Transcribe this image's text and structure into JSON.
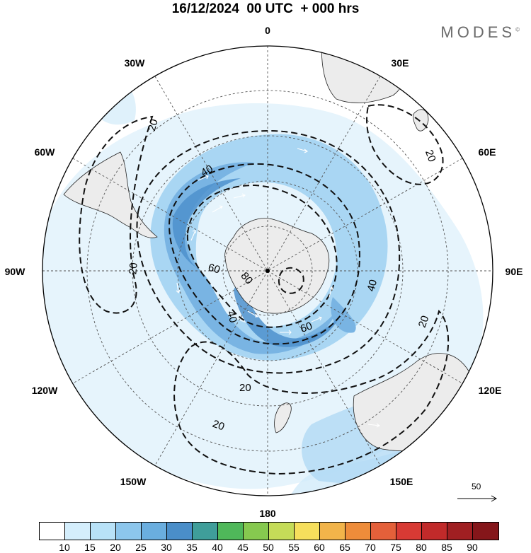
{
  "title": "16/12/2024  00 UTC  + 000 hrs",
  "brand": "MODES",
  "brand_mark": "©",
  "longitude_labels": [
    "0",
    "30E",
    "60E",
    "90E",
    "120E",
    "150E",
    "180",
    "150W",
    "120W",
    "90W",
    "60W",
    "30W"
  ],
  "contour_labels": [
    "20",
    "20",
    "20",
    "20",
    "20",
    "20",
    "40",
    "40",
    "40",
    "60",
    "60",
    "80"
  ],
  "scale_vector_label": "50",
  "colorbar": {
    "colors": [
      "#ffffff",
      "#d4eefc",
      "#b8e2f8",
      "#8cc6ec",
      "#6aaedf",
      "#4a8ec9",
      "#3f9e9a",
      "#4fb85a",
      "#86c94f",
      "#c5dc58",
      "#f6df5c",
      "#f2b44a",
      "#ee8c3a",
      "#e4603a",
      "#d83a34",
      "#c12a2a",
      "#a01f22",
      "#85161a"
    ],
    "labels": [
      "10",
      "15",
      "20",
      "25",
      "30",
      "35",
      "40",
      "45",
      "50",
      "55",
      "60",
      "65",
      "70",
      "75",
      "80",
      "85",
      "90"
    ]
  },
  "colors": {
    "land": "#ececec",
    "coast": "#222222",
    "wind_light": "#d2ebfa",
    "wind_medium": "#a9d6f3",
    "wind_strong": "#79b4e3",
    "wind_core": "#4d90cc",
    "contour": "#111111",
    "grid": "#555555"
  }
}
